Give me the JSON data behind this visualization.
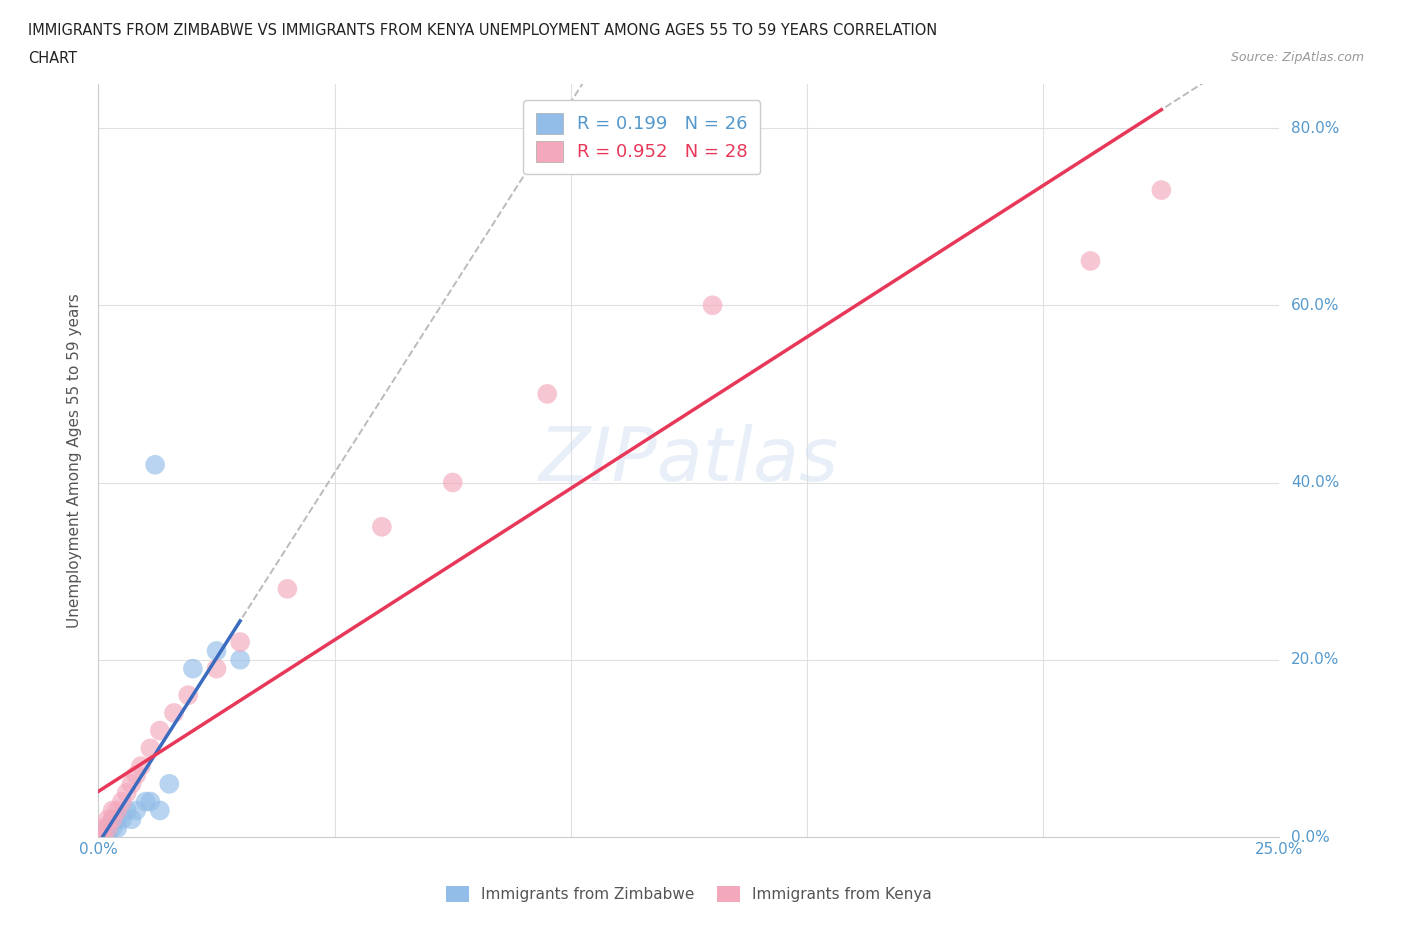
{
  "title_line1": "IMMIGRANTS FROM ZIMBABWE VS IMMIGRANTS FROM KENYA UNEMPLOYMENT AMONG AGES 55 TO 59 YEARS CORRELATION",
  "title_line2": "CHART",
  "source": "Source: ZipAtlas.com",
  "ylabel": "Unemployment Among Ages 55 to 59 years",
  "xlim": [
    0.0,
    0.25
  ],
  "ylim": [
    0.0,
    0.85
  ],
  "xticks": [
    0.0,
    0.05,
    0.1,
    0.15,
    0.2,
    0.25
  ],
  "yticks": [
    0.0,
    0.2,
    0.4,
    0.6,
    0.8
  ],
  "zimbabwe_color": "#92bde8",
  "kenya_color": "#f4a8bc",
  "zimbabwe_line_color": "#3a6bbf",
  "kenya_line_color": "#e8385a",
  "zimbabwe_R": 0.199,
  "zimbabwe_N": 26,
  "kenya_R": 0.952,
  "kenya_N": 28,
  "background_color": "#ffffff",
  "grid_color": "#e0e0e0",
  "zimbabwe_x": [
    0.0,
    0.0,
    0.0,
    0.001,
    0.001,
    0.001,
    0.001,
    0.002,
    0.002,
    0.002,
    0.003,
    0.003,
    0.004,
    0.004,
    0.005,
    0.006,
    0.007,
    0.008,
    0.01,
    0.011,
    0.013,
    0.015,
    0.02,
    0.025,
    0.03,
    0.012
  ],
  "zimbabwe_y": [
    0.0,
    0.0,
    0.0,
    0.0,
    0.0,
    0.0,
    0.0,
    0.0,
    0.01,
    0.01,
    0.01,
    0.02,
    0.01,
    0.02,
    0.02,
    0.03,
    0.02,
    0.03,
    0.04,
    0.04,
    0.03,
    0.06,
    0.19,
    0.21,
    0.2,
    0.42
  ],
  "kenya_x": [
    0.0,
    0.0,
    0.0,
    0.001,
    0.001,
    0.002,
    0.002,
    0.003,
    0.003,
    0.004,
    0.005,
    0.006,
    0.007,
    0.008,
    0.009,
    0.011,
    0.013,
    0.016,
    0.019,
    0.025,
    0.03,
    0.04,
    0.06,
    0.075,
    0.095,
    0.13,
    0.21,
    0.225
  ],
  "kenya_y": [
    0.0,
    0.0,
    0.0,
    0.0,
    0.01,
    0.01,
    0.02,
    0.02,
    0.03,
    0.03,
    0.04,
    0.05,
    0.06,
    0.07,
    0.08,
    0.1,
    0.12,
    0.14,
    0.16,
    0.19,
    0.22,
    0.28,
    0.35,
    0.4,
    0.5,
    0.6,
    0.65,
    0.73
  ]
}
